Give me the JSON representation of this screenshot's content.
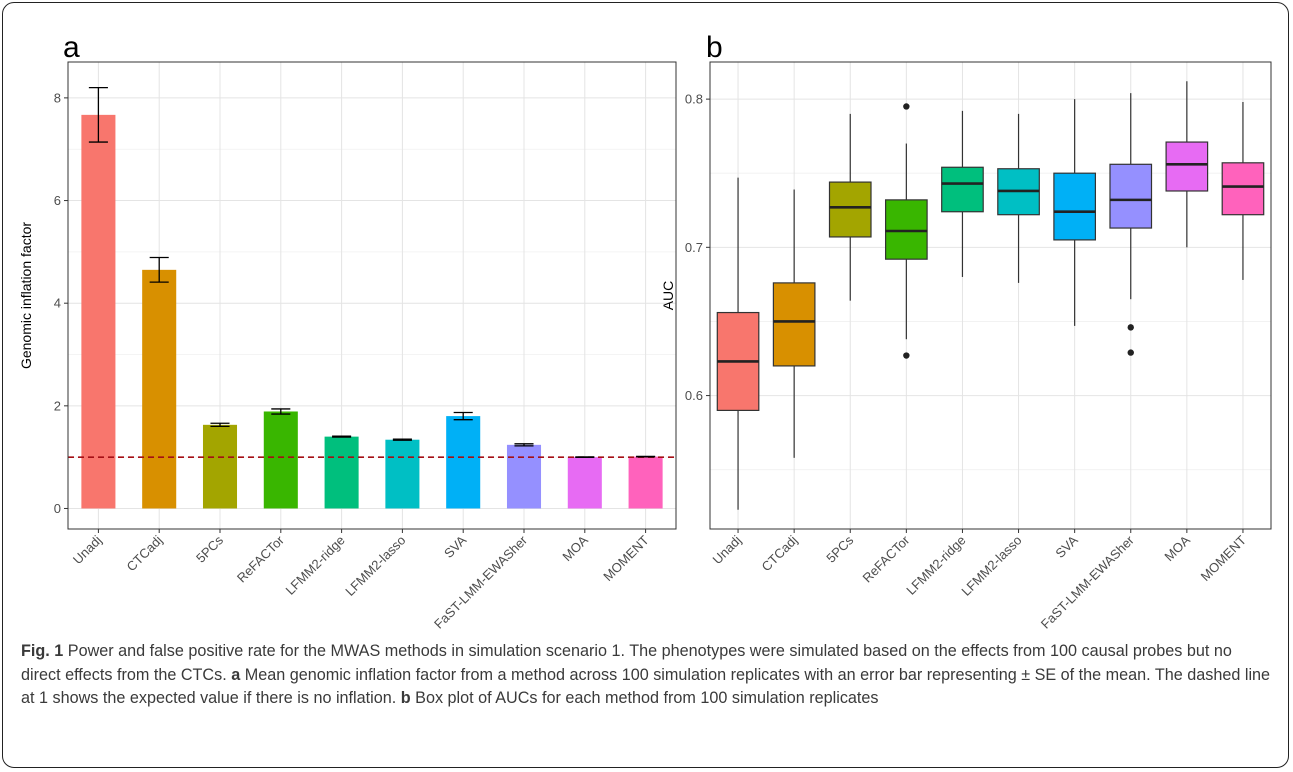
{
  "caption": {
    "fig_label": "Fig. 1",
    "part1": "Power and false positive rate for the MWAS methods in simulation scenario 1. The phenotypes were simulated based on the effects from 100 causal probes but no direct effects from the CTCs.",
    "label_a": "a",
    "part2": "Mean genomic inflation factor from a method across 100 simulation replicates with an error bar representing ± SE of the mean. The dashed line at 1 shows the expected value if there is no inflation.",
    "label_b": "b",
    "part3": "Box plot of AUCs for each method from 100 simulation replicates"
  },
  "colors": {
    "Unadj": "#F8766D",
    "CTCadj": "#D89000",
    "5PCs": "#A3A500",
    "ReFACTor": "#39B600",
    "LFMM2-ridge": "#00BF7D",
    "LFMM2-lasso": "#00BFC4",
    "SVA": "#00B0F6",
    "FaST-LMM-EWASher": "#9590FF",
    "MOA": "#E76BF3",
    "MOMENT": "#FF62BC"
  },
  "chart_data": [
    {
      "panel": "a",
      "type": "bar",
      "categories": [
        "Unadj",
        "CTCadj",
        "5PCs",
        "ReFACTor",
        "LFMM2-ridge",
        "LFMM2-lasso",
        "SVA",
        "FaST-LMM-EWASher",
        "MOA",
        "MOMENT"
      ],
      "values": [
        7.67,
        4.65,
        1.63,
        1.89,
        1.4,
        1.34,
        1.8,
        1.24,
        1.0,
        1.01
      ],
      "errors": [
        0.53,
        0.24,
        0.03,
        0.05,
        0.01,
        0.01,
        0.07,
        0.02,
        0.005,
        0.005
      ],
      "ylabel": "Genomic inflation factor",
      "ylim": [
        -0.4,
        8.7
      ],
      "yticks": [
        0,
        2,
        4,
        6,
        8
      ],
      "reference_line": 1,
      "grid": true
    },
    {
      "panel": "b",
      "type": "box",
      "categories": [
        "Unadj",
        "CTCadj",
        "5PCs",
        "ReFACTor",
        "LFMM2-ridge",
        "LFMM2-lasso",
        "SVA",
        "FaST-LMM-EWASher",
        "MOA",
        "MOMENT"
      ],
      "boxes": [
        {
          "whisker_low": 0.523,
          "q1": 0.59,
          "median": 0.623,
          "q3": 0.656,
          "whisker_high": 0.747,
          "outliers": []
        },
        {
          "whisker_low": 0.558,
          "q1": 0.62,
          "median": 0.65,
          "q3": 0.676,
          "whisker_high": 0.739,
          "outliers": []
        },
        {
          "whisker_low": 0.664,
          "q1": 0.707,
          "median": 0.727,
          "q3": 0.744,
          "whisker_high": 0.79,
          "outliers": []
        },
        {
          "whisker_low": 0.638,
          "q1": 0.692,
          "median": 0.711,
          "q3": 0.732,
          "whisker_high": 0.77,
          "outliers": [
            0.795,
            0.627
          ]
        },
        {
          "whisker_low": 0.68,
          "q1": 0.724,
          "median": 0.743,
          "q3": 0.754,
          "whisker_high": 0.792,
          "outliers": []
        },
        {
          "whisker_low": 0.676,
          "q1": 0.722,
          "median": 0.738,
          "q3": 0.753,
          "whisker_high": 0.79,
          "outliers": []
        },
        {
          "whisker_low": 0.647,
          "q1": 0.705,
          "median": 0.724,
          "q3": 0.75,
          "whisker_high": 0.8,
          "outliers": []
        },
        {
          "whisker_low": 0.665,
          "q1": 0.713,
          "median": 0.732,
          "q3": 0.756,
          "whisker_high": 0.804,
          "outliers": [
            0.646,
            0.629
          ]
        },
        {
          "whisker_low": 0.7,
          "q1": 0.738,
          "median": 0.756,
          "q3": 0.771,
          "whisker_high": 0.812,
          "outliers": []
        },
        {
          "whisker_low": 0.678,
          "q1": 0.722,
          "median": 0.741,
          "q3": 0.757,
          "whisker_high": 0.798,
          "outliers": []
        }
      ],
      "ylabel": "AUC",
      "ylim": [
        0.51,
        0.825
      ],
      "yticks": [
        0.6,
        0.7,
        0.8
      ],
      "grid": true
    }
  ]
}
